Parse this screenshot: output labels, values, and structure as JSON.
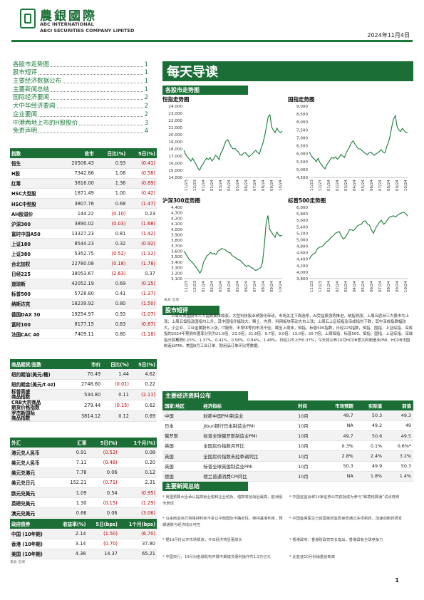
{
  "header": {
    "brand_cn": "農銀國際",
    "brand_en1": "ABC INTERNATIONAL",
    "brand_en2": "ABCI SECURITIES COMPANY LIMITED",
    "date": "2024年11月4日"
  },
  "toc": [
    {
      "label": "各股市走势图",
      "page": "1"
    },
    {
      "label": "股市短评",
      "page": "1"
    },
    {
      "label": "主要经济数据公布",
      "page": "1"
    },
    {
      "label": "主要新闻总结",
      "page": "1"
    },
    {
      "label": "国际经济要闻",
      "page": "2"
    },
    {
      "label": "大中华经济要闻",
      "page": "2"
    },
    {
      "label": "企业要闻",
      "page": "2"
    },
    {
      "label": "中港两地上市的H股股价",
      "page": "3"
    },
    {
      "label": "免责声明",
      "page": "4"
    }
  ],
  "title": "每天导读",
  "market_table": {
    "headers": [
      "指数",
      "收市",
      "日比(%)",
      "5日(%)"
    ],
    "rows": [
      {
        "name": "恒生",
        "close": "20506.43",
        "day": "0.93",
        "five": "(0.41)",
        "day_neg": false,
        "five_neg": true
      },
      {
        "name": "H股",
        "close": "7342.66",
        "day": "1.08",
        "five": "(0.58)",
        "day_neg": false,
        "five_neg": true
      },
      {
        "name": "红筹",
        "close": "3816.00",
        "day": "1.36",
        "five": "(0.89)",
        "day_neg": false,
        "five_neg": true
      },
      {
        "name": "HSC大型股",
        "close": "1871.49",
        "day": "1.00",
        "five": "(0.42)",
        "day_neg": false,
        "five_neg": true
      },
      {
        "name": "HSC中型股",
        "close": "3807.76",
        "day": "0.68",
        "five": "(1.47)",
        "day_neg": false,
        "five_neg": true
      },
      {
        "name": "AH股溢价",
        "close": "144.22",
        "day": "(0.10)",
        "five": "0.23",
        "day_neg": true,
        "five_neg": false
      },
      {
        "name": "沪深300",
        "close": "3890.02",
        "day": "(0.03)",
        "five": "(1.68)",
        "day_neg": true,
        "five_neg": true
      },
      {
        "name": "富时中国A50",
        "close": "13327.23",
        "day": "0.81",
        "five": "(1.42)",
        "day_neg": false,
        "five_neg": true
      },
      {
        "name": "上证180",
        "close": "8544.23",
        "day": "0.32",
        "five": "(0.92)",
        "day_neg": false,
        "five_neg": true
      },
      {
        "name": "上证380",
        "close": "5352.75",
        "day": "(0.52)",
        "five": "(1.12)",
        "day_neg": true,
        "five_neg": true
      },
      {
        "name": "台北加权",
        "close": "22780.08",
        "day": "(0.18)",
        "five": "(1.78)",
        "day_neg": true,
        "five_neg": true
      },
      {
        "name": "日经225",
        "close": "38053.67",
        "day": "(2.63)",
        "five": "0.37",
        "day_neg": true,
        "five_neg": false
      },
      {
        "name": "道琼斯",
        "close": "42052.19",
        "day": "0.69",
        "five": "(0.15)",
        "day_neg": false,
        "five_neg": true
      },
      {
        "name": "标普500",
        "close": "5728.80",
        "day": "0.41",
        "five": "(1.37)",
        "day_neg": false,
        "five_neg": true
      },
      {
        "name": "纳斯达克",
        "close": "18239.92",
        "day": "0.80",
        "five": "(1.50)",
        "day_neg": false,
        "five_neg": true
      },
      {
        "name": "德国DAX 30",
        "close": "19254.97",
        "day": "0.93",
        "five": "(1.07)",
        "day_neg": false,
        "five_neg": true
      },
      {
        "name": "富时100",
        "close": "8177.15",
        "day": "0.83",
        "five": "(0.87)",
        "day_neg": false,
        "five_neg": true
      },
      {
        "name": "法国CAC 40",
        "close": "7409.11",
        "day": "0.80",
        "five": "(1.18)",
        "day_neg": false,
        "five_neg": true
      }
    ]
  },
  "commodity_table": {
    "headers": [
      "商品期货/指数",
      "市价",
      "日比(%)",
      "5日(%)"
    ],
    "rows": [
      {
        "name": "纽约期油(美元/桶)",
        "price": "70.49",
        "day": "1.44",
        "five": "4.62",
        "day_neg": false,
        "five_neg": false
      },
      {
        "name": "纽约期金(美元/t oz)",
        "price": "2748.60",
        "day": "(0.01)",
        "five": "0.22",
        "day_neg": true,
        "five_neg": false
      },
      {
        "name": "标普高盛\n商品指数",
        "price": "534.80",
        "day": "0.11",
        "five": "(2.11)",
        "day_neg": false,
        "five_neg": true
      },
      {
        "name": "CRB大宗商品\n期货价格指数",
        "price": "279.44",
        "day": "(0.15)",
        "five": "0.62",
        "day_neg": true,
        "five_neg": false
      },
      {
        "name": "罗杰斯国际\n商品指数",
        "price": "3814.12",
        "day": "0.12",
        "five": "0.69",
        "day_neg": false,
        "five_neg": false
      }
    ]
  },
  "fx_table": {
    "headers": [
      "外汇",
      "汇率",
      "5日(%)",
      "1个月(%)"
    ],
    "rows": [
      {
        "name": "港元兑人民币",
        "rate": "0.91",
        "five": "(0.52)",
        "month": "0.08",
        "five_neg": true,
        "month_neg": false
      },
      {
        "name": "美元兑人民币",
        "rate": "7.11",
        "five": "(0.48)",
        "month": "0.20",
        "five_neg": true,
        "month_neg": false
      },
      {
        "name": "美元兑港元",
        "rate": "7.78",
        "five": "0.06",
        "month": "0.12",
        "five_neg": false,
        "month_neg": false
      },
      {
        "name": "美元兑日元",
        "rate": "152.21",
        "five": "(0.71)",
        "month": "2.31",
        "five_neg": true,
        "month_neg": false
      },
      {
        "name": "欧元兑美元",
        "rate": "1.09",
        "five": "0.54",
        "month": "(0.95)",
        "five_neg": false,
        "month_neg": true
      },
      {
        "name": "英磅兑美元",
        "rate": "1.30",
        "five": "(0.15)",
        "month": "(1.29)",
        "five_neg": true,
        "month_neg": true
      },
      {
        "name": "澳元兑美元",
        "rate": "0.66",
        "five": "0.06",
        "month": "(3.06)",
        "five_neg": false,
        "month_neg": true
      }
    ]
  },
  "bond_table": {
    "headers": [
      "政府债券",
      "收益率(%)",
      "5日(bps)",
      "1个月(bps)"
    ],
    "rows": [
      {
        "name": "中国 (10年期)",
        "yield": "2.14",
        "five": "(1.50)",
        "month": "(6.70)",
        "five_neg": true,
        "month_neg": true
      },
      {
        "name": "香港 (10年期)",
        "yield": "3.14",
        "five": "(0.70)",
        "month": "37.80",
        "five_neg": true,
        "month_neg": false
      },
      {
        "name": "美国 (10年期)",
        "yield": "4.38",
        "five": "14.37",
        "month": "65.21",
        "five_neg": false,
        "month_neg": false
      }
    ]
  },
  "source_note": "来源: 彭博",
  "section_titles": {
    "charts": "各股市走势图",
    "commentary": "股市短评",
    "econ": "主要经济资料公布",
    "news": "主要新闻总结"
  },
  "chart_data": [
    {
      "type": "line",
      "title": "恒指走势图",
      "ylim": [
        14000,
        24000
      ],
      "y_ticks": [
        "24,000",
        "23,000",
        "22,000",
        "21,000",
        "20,000",
        "19,000",
        "18,000",
        "17,000",
        "16,000",
        "15,000",
        "14,000"
      ],
      "x_ticks": [
        "11/23",
        "12/23",
        "01/24",
        "02/24",
        "03/24",
        "04/24",
        "05/24",
        "06/24",
        "07/24",
        "08/24",
        "09/24",
        "10/24"
      ],
      "values": [
        17800,
        17200,
        16900,
        16600,
        16300,
        16700,
        16200,
        15800,
        15300,
        15000,
        15600,
        15900,
        16400,
        16700,
        16500,
        16800,
        16300,
        16600,
        17100,
        16900,
        16500,
        17400,
        17800,
        18500,
        19100,
        19300,
        18800,
        18300,
        18000,
        18100,
        17800,
        17600,
        17200,
        17100,
        17400,
        17500,
        17200,
        16900,
        17100,
        17300,
        17600,
        17800,
        17500,
        17300,
        18100,
        18800,
        19800,
        21100,
        22500,
        22800,
        21100,
        20600,
        20300,
        20900,
        20500,
        20300,
        20500
      ]
    },
    {
      "type": "line",
      "title": "国指走势图",
      "ylim": [
        4500,
        9000
      ],
      "y_ticks": [
        "9,000",
        "8,500",
        "8,000",
        "7,500",
        "7,000",
        "6,500",
        "6,000",
        "5,500",
        "5,000",
        "4,500"
      ],
      "x_ticks": [
        "11/23",
        "12/23",
        "01/24",
        "02/24",
        "03/24",
        "04/24",
        "05/24",
        "06/24",
        "07/24",
        "08/24",
        "09/24",
        "10/24"
      ],
      "values": [
        6100,
        5900,
        5750,
        5650,
        5500,
        5700,
        5450,
        5300,
        5150,
        5050,
        5300,
        5450,
        5650,
        5750,
        5700,
        5800,
        5650,
        5750,
        5950,
        5850,
        5750,
        6050,
        6250,
        6450,
        6700,
        6800,
        6600,
        6450,
        6300,
        6300,
        6200,
        6100,
        6000,
        5950,
        6050,
        6100,
        6000,
        5900,
        6000,
        6050,
        6150,
        6250,
        6100,
        6050,
        6400,
        6700,
        7100,
        7700,
        8200,
        8400,
        7700,
        7500,
        7400,
        7600,
        7450,
        7350,
        7340
      ]
    },
    {
      "type": "line",
      "title": "沪深300走势图",
      "ylim": [
        3100,
        4400
      ],
      "y_ticks": [
        "4,400",
        "4,300",
        "4,200",
        "4,100",
        "4,000",
        "3,900",
        "3,800",
        "3,700",
        "3,600",
        "3,500",
        "3,400",
        "3,300",
        "3,200",
        "3,100"
      ],
      "x_ticks": [
        "11/23",
        "12/23",
        "01/24",
        "02/24",
        "03/24",
        "04/24",
        "05/24",
        "06/24",
        "07/24",
        "08/24",
        "09/24",
        "10/24"
      ],
      "values": [
        3600,
        3560,
        3500,
        3450,
        3420,
        3390,
        3340,
        3300,
        3250,
        3200,
        3260,
        3400,
        3460,
        3520,
        3540,
        3580,
        3550,
        3560,
        3540,
        3600,
        3620,
        3650,
        3640,
        3630,
        3600,
        3580,
        3570,
        3520,
        3500,
        3480,
        3450,
        3440,
        3420,
        3380,
        3350,
        3320,
        3340,
        3320,
        3300,
        3280,
        3250,
        3260,
        3280,
        3300,
        3400,
        3700,
        4100,
        4250,
        4000,
        3950,
        3900,
        3850,
        3950,
        3900,
        3880,
        3890
      ]
    },
    {
      "type": "line",
      "title": "标普500走势图",
      "ylim": [
        3800,
        6000
      ],
      "y_ticks": [
        "6,000",
        "5,800",
        "5,600",
        "5,400",
        "5,200",
        "5,000",
        "4,800",
        "4,600",
        "4,400",
        "4,200",
        "4,000",
        "3,800"
      ],
      "x_ticks": [
        "11/23",
        "12/23",
        "01/24",
        "02/24",
        "03/24",
        "04/24",
        "05/24",
        "06/24",
        "07/24",
        "08/24",
        "09/24",
        "10/24"
      ],
      "values": [
        4400,
        4500,
        4560,
        4600,
        4720,
        4770,
        4780,
        4820,
        4900,
        4950,
        5010,
        5080,
        5130,
        5200,
        5230,
        5250,
        5110,
        5020,
        5070,
        5180,
        5300,
        5310,
        5280,
        5350,
        5430,
        5460,
        5480,
        5570,
        5580,
        5480,
        5450,
        5300,
        5200,
        5350,
        5450,
        5550,
        5600,
        5480,
        5520,
        5620,
        5700,
        5720,
        5740,
        5700,
        5760,
        5800,
        5830,
        5850,
        5810,
        5730
      ]
    }
  ],
  "chart_source": "来源: 彭博",
  "commentary": "上周五美国股市三大指数集体收涨，大型科技股业绩强化带动，市场关注下周选举，AI受益股强势推进，纳指领涨；上周五欧洲三大股市均上涨；上周五恒指及国指均上升，其中国指升幅较大；稀土、内房、科网板块带动大市上涨；上周五上证综指及深成指均下跌，其中深成指跌幅较大，小企业、工业金属股市上涨，IT服务、半导体等内市况不佳；截至上周末，恒指、标普500指数，日经225指数，恒指、国指、上证综指、深成指的2024年预测市盈率分别为21.9倍、23.0倍、21.6倍、9.7倍、9.0倍、13.0倍、20.7倍；上周恒指、标普500、恒指、国指、上证综指、深成指分别累跌0.15%、1.37%、0.41%、0.58%、0.84%、1.48%。日经225上升0.37%，今天将公布10月HCOB意大利制造业PMI、HCOB法国制造业PMI，美国9月工业订单、耐用品订单环比等数据。",
  "econ_table": {
    "headers": [
      "国家/地区",
      "经济指标",
      "时间",
      "市场预期",
      "实际值",
      "前值"
    ],
    "rows": [
      {
        "region": "中国",
        "indicator": "财新中国PMI制造业",
        "time": "10月",
        "expect": "49.7",
        "actual": "50.3",
        "prev": "49.3"
      },
      {
        "region": "日本",
        "indicator": "Jibun银行日本制造业PMI",
        "time": "10月",
        "expect": "NA",
        "actual": "49.2",
        "prev": "49"
      },
      {
        "region": "俄罗斯",
        "indicator": "标普全球俄罗斯制造业PMI",
        "time": "10月",
        "expect": "49.7",
        "actual": "50.6",
        "prev": "49.5"
      },
      {
        "region": "英国",
        "indicator": "全国房价指数月环比",
        "time": "10月",
        "expect": "0.3%",
        "actual": "0.1%",
        "prev": "0.6%*"
      },
      {
        "region": "英国",
        "indicator": "全国房价指数未经季调同比",
        "time": "10月",
        "expect": "2.8%",
        "actual": "2.4%",
        "prev": "3.2%"
      },
      {
        "region": "英国",
        "indicator": "标普全球英国制造业PMI",
        "time": "10月",
        "expect": "50.3",
        "actual": "49.9",
        "prev": "50.3"
      },
      {
        "region": "德国",
        "indicator": "德兰普通消费CPI同比",
        "time": "10月",
        "expect": "NA",
        "actual": "1.8%",
        "prev": "1.4%"
      }
    ]
  },
  "econ_source": "来源: 彭博 *均为修正值",
  "news": [
    "英国预算大臣承认提高就业税和企业税负，借款将创战后最高，欧洲股市表现",
    "马来西亚央行将保持利率不变以平衡国际不确定性，维持基准利率，预期通胀与经济增长可控",
    "据10月份公开市场报道，今年经济将显著增长",
    "中国央行，10月对金融机构开展中期借贷便利操作共1.2万亿元",
    "中国证监会称14家证券公司获批成为参与“跨境结算通”试点券商",
    "中国首席医生已获国家药监局审查通过多项新药，加速创新药研发",
    "香港政府：香港财政司司长指出，香港具有全球竞争力",
    "比亚迪10月份销量创新高"
  ],
  "page_number": "1"
}
